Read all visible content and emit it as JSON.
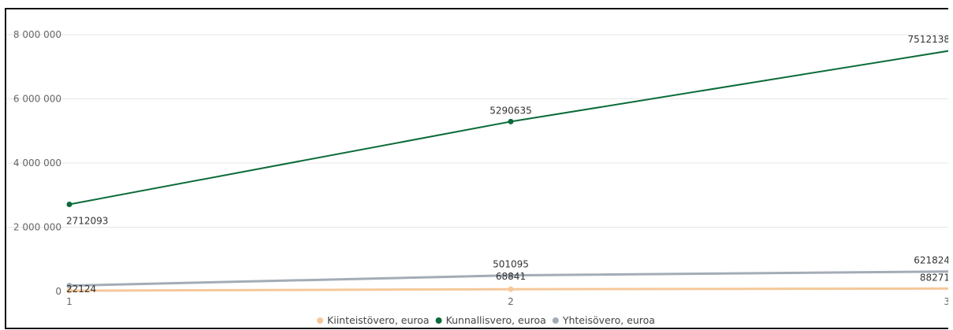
{
  "chart_data": {
    "type": "line",
    "title": "",
    "xlabel": "",
    "ylabel": "",
    "categories": [
      "1",
      "2",
      "3"
    ],
    "x": [
      1,
      2,
      3
    ],
    "ylim": [
      0,
      8000000
    ],
    "yticks": [
      {
        "value": 0,
        "label": "0"
      },
      {
        "value": 2000000,
        "label": "2 000 000"
      },
      {
        "value": 4000000,
        "label": "4 000 000"
      },
      {
        "value": 6000000,
        "label": "6 000 000"
      },
      {
        "value": 8000000,
        "label": "8 000 000"
      }
    ],
    "grid": true,
    "legend_position": "bottom-center",
    "series": [
      {
        "name": "Kiinteistövero, euroa",
        "color": "#f5c89a",
        "values": [
          22124,
          68841,
          88271
        ],
        "labels": [
          "22124",
          "68841",
          "88271"
        ],
        "stroke_width": 3
      },
      {
        "name": "Kunnallisvero, euroa",
        "color": "#0b6b3a",
        "values": [
          2712093,
          5290635,
          7512138
        ],
        "labels": [
          "2712093",
          "5290635",
          "7512138"
        ],
        "stroke_width": 2
      },
      {
        "name": "Yhteisövero, euroa",
        "color": "#a3acb6",
        "values": [
          180000,
          501095,
          621824
        ],
        "labels": [
          "",
          "501095",
          "621824"
        ],
        "stroke_width": 3
      }
    ]
  }
}
